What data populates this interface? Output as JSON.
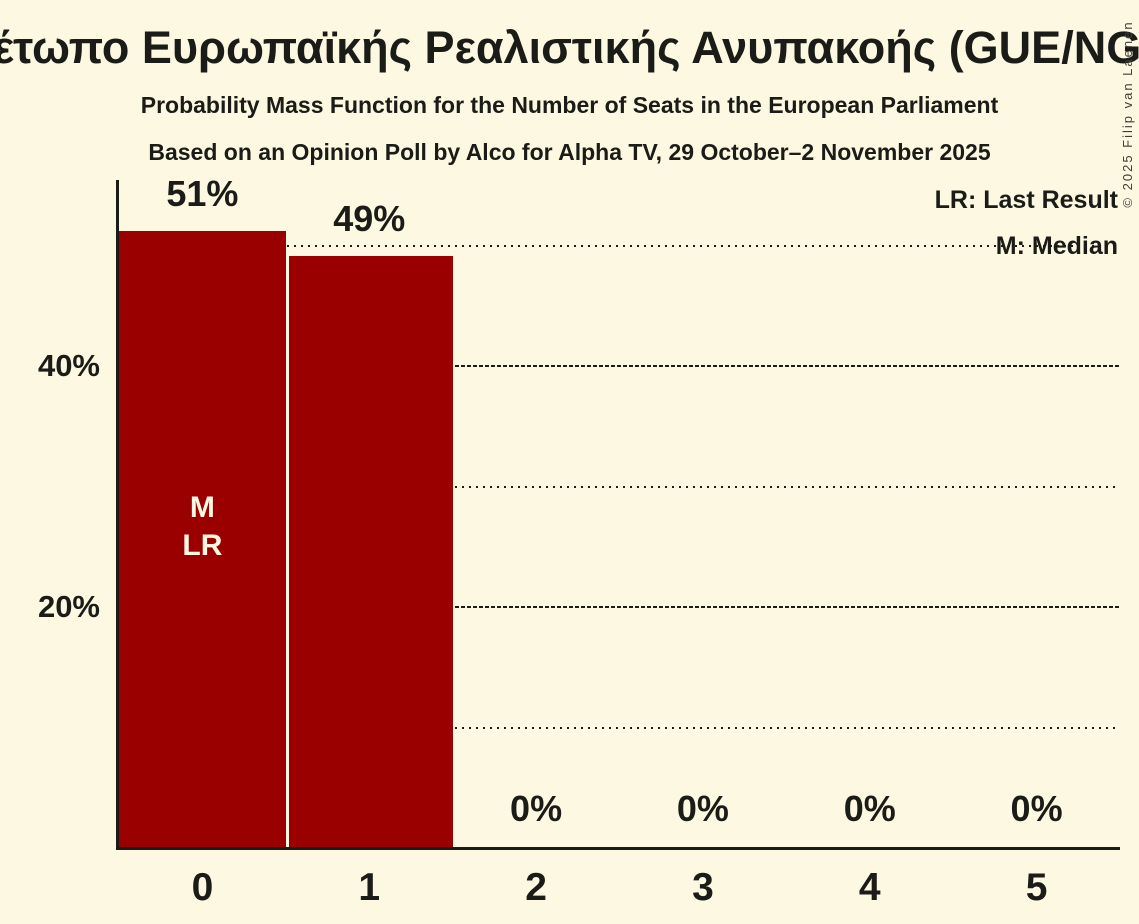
{
  "title": "Μέτωπο Ευρωπαϊκής Ρεαλιστικής Ανυπακοής (GUE/NGL)",
  "subtitle": "Probability Mass Function for the Number of Seats in the European Parliament",
  "subsubtitle": "Based on an Opinion Poll by Alco for Alpha TV, 29 October–2 November 2025",
  "copyright": "© 2025 Filip van Laenen",
  "legend": {
    "lr_label": "LR: Last Result",
    "m_label": "M: Median"
  },
  "colors": {
    "background": "#FCF8E1",
    "bar": "#9B0000",
    "text": "#1B1B18",
    "bar_text": "#FCF8E1"
  },
  "chart_data": {
    "type": "bar",
    "title": "Μέτωπο Ευρωπαϊκής Ρεαλιστικής Ανυπακοής (GUE/NGL)",
    "subtitle": "Probability Mass Function for the Number of Seats in the European Parliament",
    "xlabel": "",
    "ylabel": "",
    "categories": [
      "0",
      "1",
      "2",
      "3",
      "4",
      "5"
    ],
    "values": [
      51,
      49,
      0,
      0,
      0,
      0
    ],
    "value_labels": [
      "51%",
      "49%",
      "0%",
      "0%",
      "0%",
      "0%"
    ],
    "bar_annotations": [
      {
        "index": 0,
        "lines": [
          "M",
          "LR"
        ]
      }
    ],
    "ylim": [
      0,
      55.4
    ],
    "yticks": [
      {
        "pct": 10,
        "label": "",
        "style": "dotted"
      },
      {
        "pct": 20,
        "label": "20%",
        "style": "dashed"
      },
      {
        "pct": 30,
        "label": "",
        "style": "dotted"
      },
      {
        "pct": 40,
        "label": "40%",
        "style": "dashed"
      },
      {
        "pct": 50,
        "label": "",
        "style": "dotted"
      }
    ],
    "grid": "horizontal",
    "legend_entries": [
      "LR: Last Result",
      "M: Median"
    ],
    "legend_position": "top-right"
  }
}
